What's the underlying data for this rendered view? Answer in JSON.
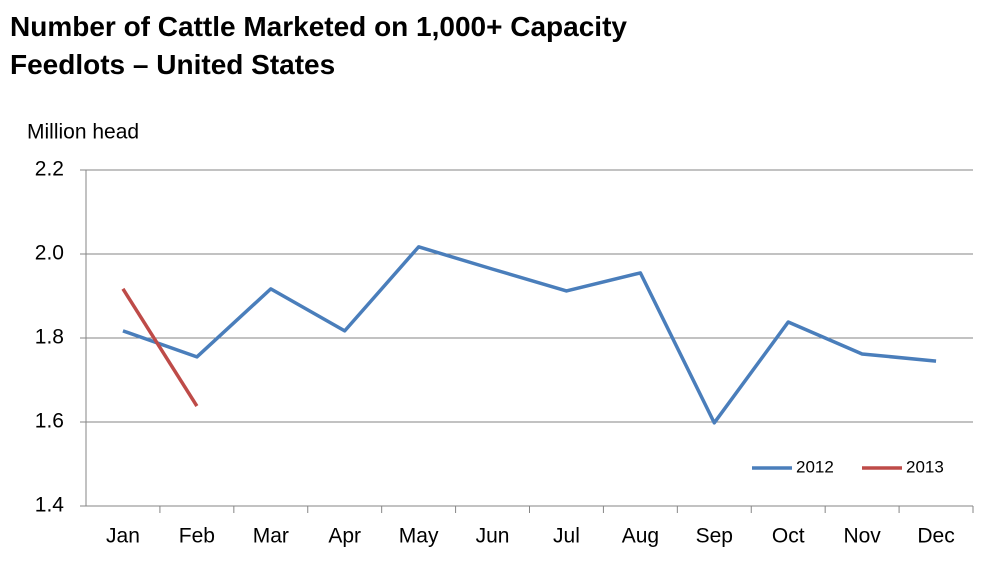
{
  "chart_data": {
    "type": "line",
    "title": "Number of Cattle Marketed on 1,000+ Capacity Feedlots – United States",
    "y_label": "Million head",
    "categories": [
      "Jan",
      "Feb",
      "Mar",
      "Apr",
      "May",
      "Jun",
      "Jul",
      "Aug",
      "Sep",
      "Oct",
      "Nov",
      "Dec"
    ],
    "series": [
      {
        "name": "2012",
        "color": "#4a7ebb",
        "values": [
          1.817,
          1.755,
          1.917,
          1.817,
          2.017,
          1.964,
          1.912,
          1.955,
          1.598,
          1.838,
          1.762,
          1.745
        ]
      },
      {
        "name": "2013",
        "color": "#be4b48",
        "values": [
          1.917,
          1.638,
          null,
          null,
          null,
          null,
          null,
          null,
          null,
          null,
          null,
          null
        ]
      }
    ],
    "ylim": [
      1.4,
      2.2
    ],
    "yticks": [
      1.4,
      1.6,
      1.8,
      {
        "value": 2,
        "label": "2.0"
      },
      2.2
    ],
    "grid": true,
    "legend": "lower right"
  }
}
